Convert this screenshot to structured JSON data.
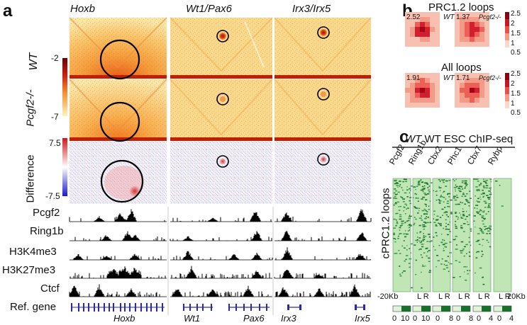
{
  "panels": {
    "a": "a",
    "b": "b",
    "c": "c"
  },
  "panel_a": {
    "columns": [
      "Hoxb",
      "Wt1/Pax6",
      "Irx3/Irx5"
    ],
    "rows": [
      "WT",
      "Pcgf2-/-",
      "Difference"
    ],
    "scale_hic": {
      "max": "-2",
      "min": "-7"
    },
    "scale_diff": {
      "max": "7.5",
      "min": "-7.5"
    },
    "tracks": [
      "Pcgf2",
      "Ring1b",
      "H3K4me3",
      "H3K27me3",
      "Ctcf",
      "Ref. gene"
    ],
    "genes": [
      "Hoxb",
      "Wt1",
      "Pax6",
      "Irx3",
      "Irx5"
    ],
    "colors": {
      "hot_light": "#fde8a0",
      "hot_mid": "#f6a040",
      "hot_dark": "#c02010",
      "diff_pos": "#e03030",
      "diff_neg": "#3040e0",
      "track": "#000000",
      "gene": "#2a2ab0"
    }
  },
  "panel_b": {
    "sections": [
      {
        "title": "PRC1.2 loops",
        "wt_value": "2.52",
        "ko_value": "1.37",
        "wt_label": "WT",
        "ko_label": "Pcgf2-/-",
        "scale": [
          "2.5",
          "2",
          "1.5",
          "1",
          "0.5"
        ]
      },
      {
        "title": "All loops",
        "wt_value": "1.91",
        "ko_value": "1.71",
        "wt_label": "WT",
        "ko_label": "Pcgf2-/-",
        "scale": [
          "2.5",
          "2",
          "1.5",
          "1",
          "0.5"
        ]
      }
    ]
  },
  "panel_c": {
    "title": "WT ESC ChIP-seq",
    "y_label": "cPRC1.2 loops",
    "factors": [
      "Pcgf2",
      "Ring1b",
      "Cbx2",
      "Phc1",
      "Cbx7",
      "Rybp"
    ],
    "axis_left": "-20Kb",
    "axis_right": "20Kb",
    "lr": "L R",
    "scales": [
      {
        "min": "0",
        "max": "10"
      },
      {
        "min": "0",
        "max": "10"
      },
      {
        "min": "0",
        "max": "8"
      },
      {
        "min": "0",
        "max": "8"
      },
      {
        "min": "0",
        "max": "4"
      },
      {
        "min": "0",
        "max": "4"
      }
    ],
    "colors": {
      "green_light": "#dff3d8",
      "green_mid": "#8ccd80",
      "green_dark": "#1a6e2e"
    }
  }
}
